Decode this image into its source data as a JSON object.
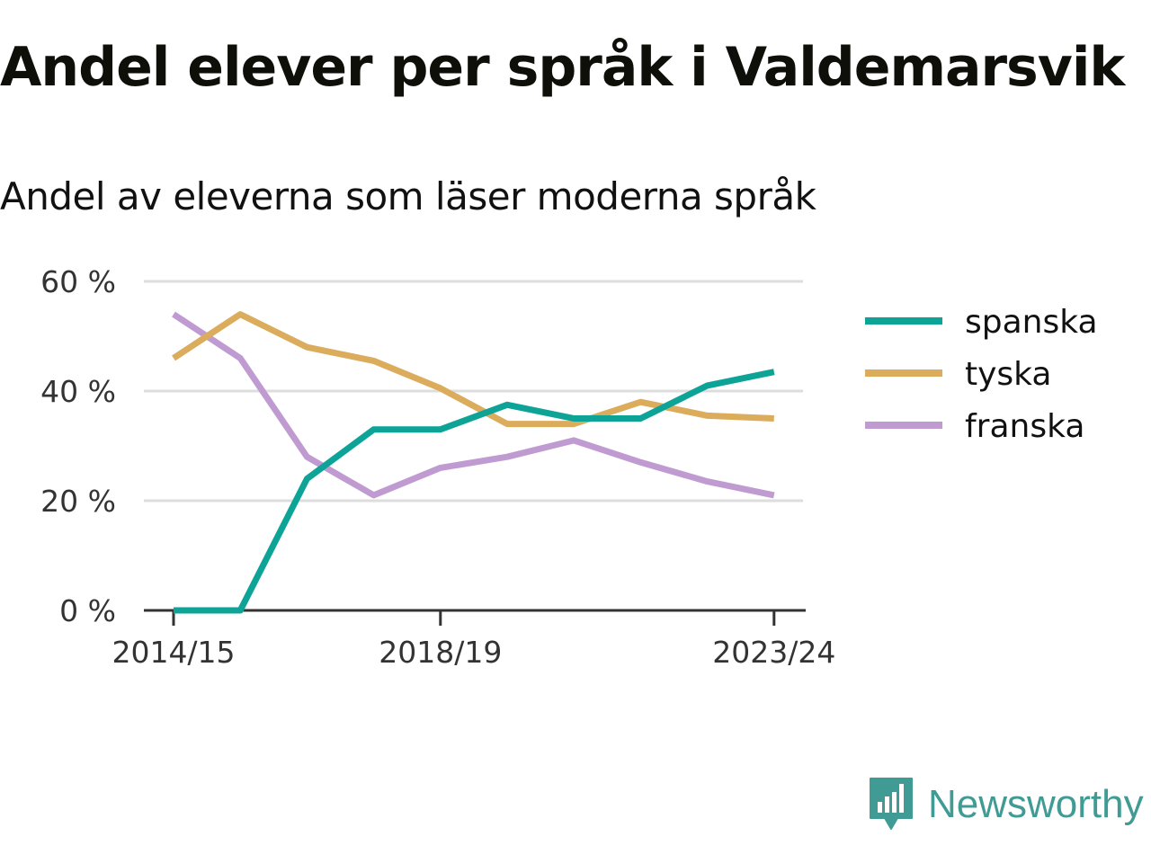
{
  "title": "Andel elever per språk i Valdemarsvik",
  "subtitle": "Andel av eleverna som läser moderna språk",
  "brand": {
    "name": "Newsworthy",
    "color": "#3f9b93",
    "icon": "bar-chart-speech-bubble-icon"
  },
  "chart_data": {
    "type": "line",
    "x": [
      "2014/15",
      "2015/16",
      "2016/17",
      "2017/18",
      "2018/19",
      "2019/20",
      "2020/21",
      "2021/22",
      "2022/23",
      "2023/24"
    ],
    "x_tick_labels": [
      "2014/15",
      "2018/19",
      "2023/24"
    ],
    "y_tick_labels": [
      "0 %",
      "20 %",
      "40 %",
      "60 %"
    ],
    "y_ticks": [
      0,
      20,
      40,
      60
    ],
    "ylim": [
      0,
      60
    ],
    "grid": true,
    "legend_position": "right",
    "series": [
      {
        "name": "spanska",
        "color": "#0da497",
        "values": [
          0,
          0,
          24,
          33,
          33,
          37.5,
          35,
          35,
          41,
          43.5
        ]
      },
      {
        "name": "tyska",
        "color": "#dcac5d",
        "values": [
          46,
          54,
          48,
          45.5,
          40.5,
          34,
          34,
          38,
          35.5,
          35
        ]
      },
      {
        "name": "franska",
        "color": "#c09bd1",
        "values": [
          54,
          46,
          28,
          21,
          26,
          28,
          31,
          27,
          23.5,
          21
        ]
      }
    ]
  }
}
